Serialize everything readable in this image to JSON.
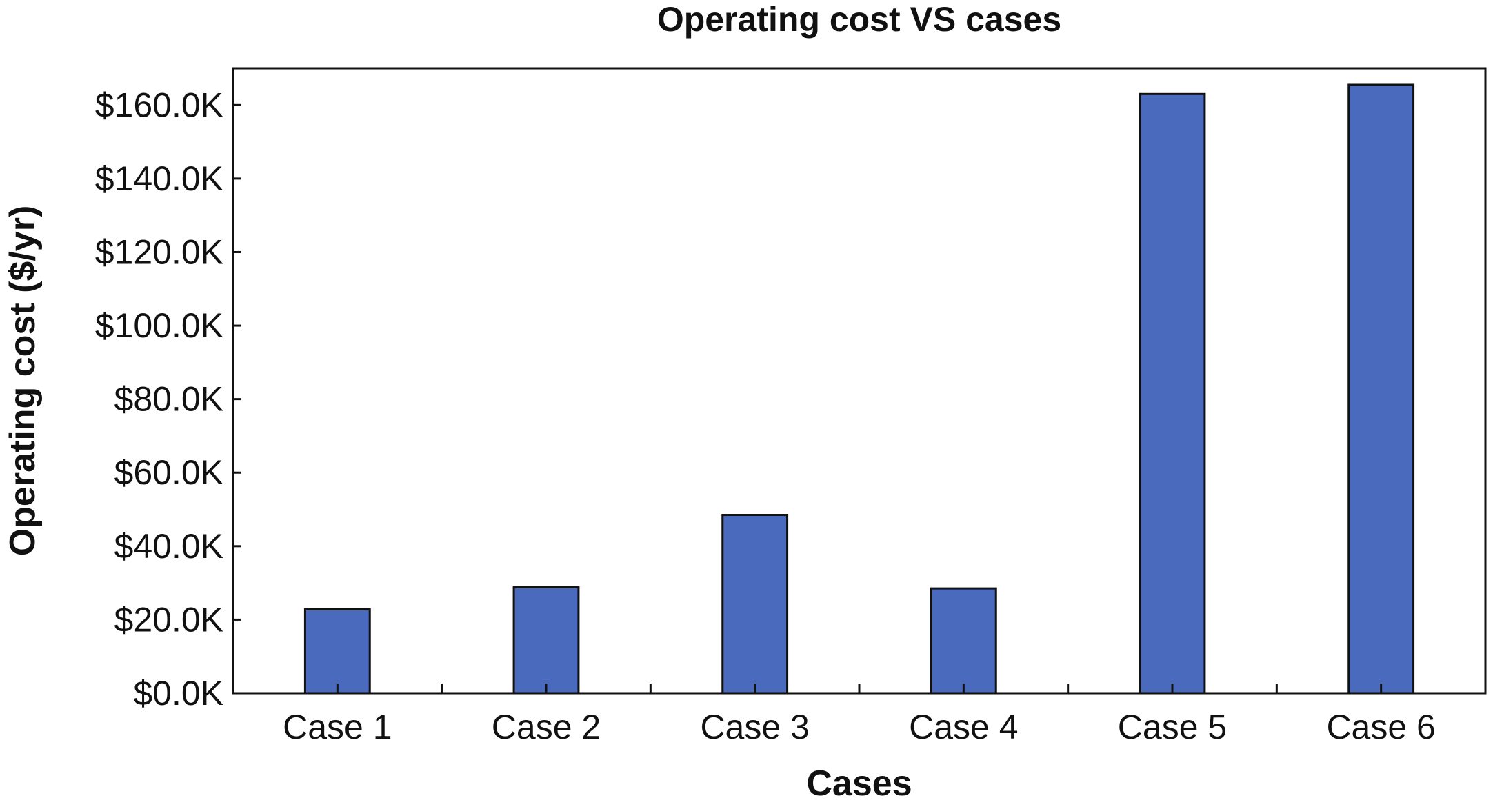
{
  "chart_data": {
    "type": "bar",
    "title": "Operating cost VS cases",
    "xlabel": "Cases",
    "ylabel": "Operating cost ($/yr)",
    "categories": [
      "Case 1",
      "Case 2",
      "Case 3",
      "Case 4",
      "Case 5",
      "Case 6"
    ],
    "values": [
      22800,
      28800,
      48500,
      28500,
      163000,
      165500
    ],
    "ylim": [
      0,
      170000
    ],
    "yticks": [
      0,
      20000,
      40000,
      60000,
      80000,
      100000,
      120000,
      140000,
      160000
    ],
    "ytick_labels": [
      "$0.0K",
      "$20.0K",
      "$40.0K",
      "$60.0K",
      "$80.0K",
      "$100.0K",
      "$120.0K",
      "$140.0K",
      "$160.0K"
    ],
    "grid": false,
    "bar_color": "#4a6bbd",
    "bar_edge_color": "#111111"
  }
}
